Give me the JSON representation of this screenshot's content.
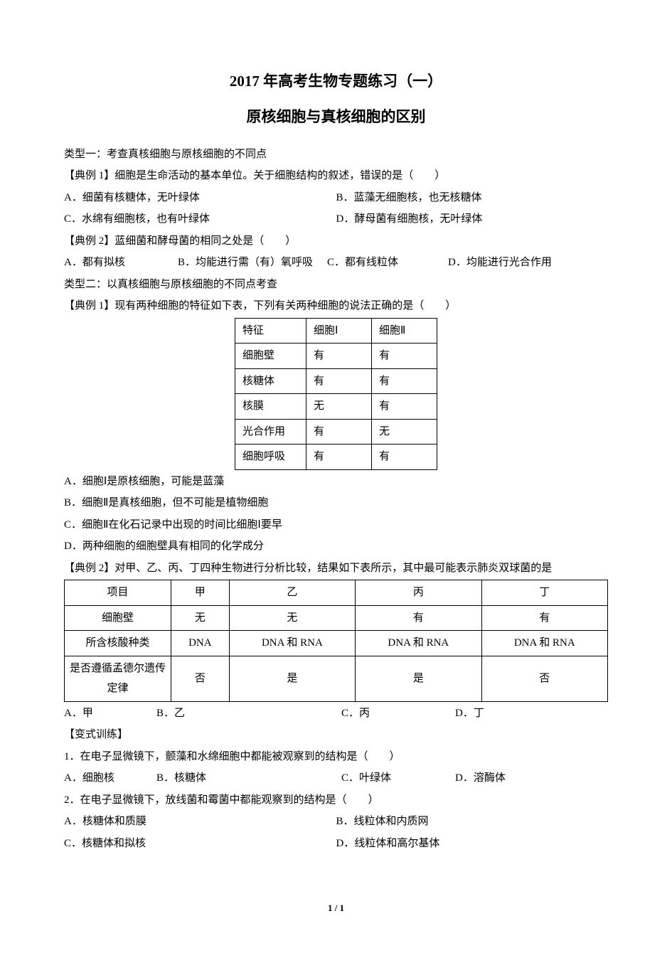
{
  "title": "2017 年高考生物专题练习（一）",
  "subtitle": "原核细胞与真核细胞的区别",
  "section1": {
    "heading": "类型一：考查真核细胞与原核细胞的不同点",
    "example1": {
      "label": "【典例 1】细胞是生命活动的基本单位。关于细胞结构的叙述，错误的是（　　）",
      "optA": "A．细菌有核糖体，无叶绿体",
      "optB": "B．蓝藻无细胞核，也无核糖体",
      "optC": "C．水绵有细胞核，也有叶绿体",
      "optD": "D．酵母菌有细胞核，无叶绿体"
    },
    "example2": {
      "label": "【典例 2】蓝细菌和酵母菌的相同之处是（　　）",
      "optA": "A．都有拟核",
      "optB": "B．均能进行需（有）氧呼吸",
      "optC": "C．都有线粒体",
      "optD": "D．均能进行光合作用"
    }
  },
  "section2": {
    "heading": "类型二：以真核细胞与原核细胞的不同点考查",
    "example1": {
      "label": "【典例 1】现有两种细胞的特征如下表，下列有关两种细胞的说法正确的是（　　）",
      "table": {
        "headers": [
          "特征",
          "细胞Ⅰ",
          "细胞Ⅱ"
        ],
        "rows": [
          [
            "细胞壁",
            "有",
            "有"
          ],
          [
            "核糖体",
            "有",
            "有"
          ],
          [
            "核膜",
            "无",
            "有"
          ],
          [
            "光合作用",
            "有",
            "无"
          ],
          [
            "细胞呼吸",
            "有",
            "有"
          ]
        ]
      },
      "optA": "A．细胞Ⅰ是原核细胞，可能是蓝藻",
      "optB": "B．细胞Ⅱ是真核细胞，但不可能是植物细胞",
      "optC": "C．细胞Ⅱ在化石记录中出现的时间比细胞Ⅰ要早",
      "optD": "D．两种细胞的细胞壁具有相同的化学成分"
    },
    "example2": {
      "label": "【典例 2】对甲、乙、丙、丁四种生物进行分析比较，结果如下表所示，其中最可能表示肺炎双球菌的是",
      "table": {
        "headers": [
          "项目",
          "甲",
          "乙",
          "丙",
          "丁"
        ],
        "rows": [
          [
            "细胞壁",
            "无",
            "无",
            "有",
            "有"
          ],
          [
            "所含核酸种类",
            "DNA",
            "DNA 和 RNA",
            "DNA 和 RNA",
            "DNA 和 RNA"
          ],
          [
            "是否遵循孟德尔遗传定律",
            "否",
            "是",
            "是",
            "否"
          ]
        ]
      },
      "optA": "A．甲",
      "optB": "B．乙",
      "optC": "C．丙",
      "optD": "D．丁"
    }
  },
  "variant": {
    "heading": "【变式训练】",
    "q1": {
      "label": "1．在电子显微镜下，颤藻和水绵细胞中都能被观察到的结构是（　　）",
      "optA": "A．细胞核",
      "optB": "B．核糖体",
      "optC": "C．叶绿体",
      "optD": "D．溶酶体"
    },
    "q2": {
      "label": "2．在电子显微镜下，放线菌和霉菌中都能观察到的结构是（　　）",
      "optA": "A．核糖体和质膜",
      "optB": "B．线粒体和内质网",
      "optC": "C．核糖体和拟核",
      "optD": "D．线粒体和高尔基体"
    }
  },
  "footer": "1 / 1"
}
